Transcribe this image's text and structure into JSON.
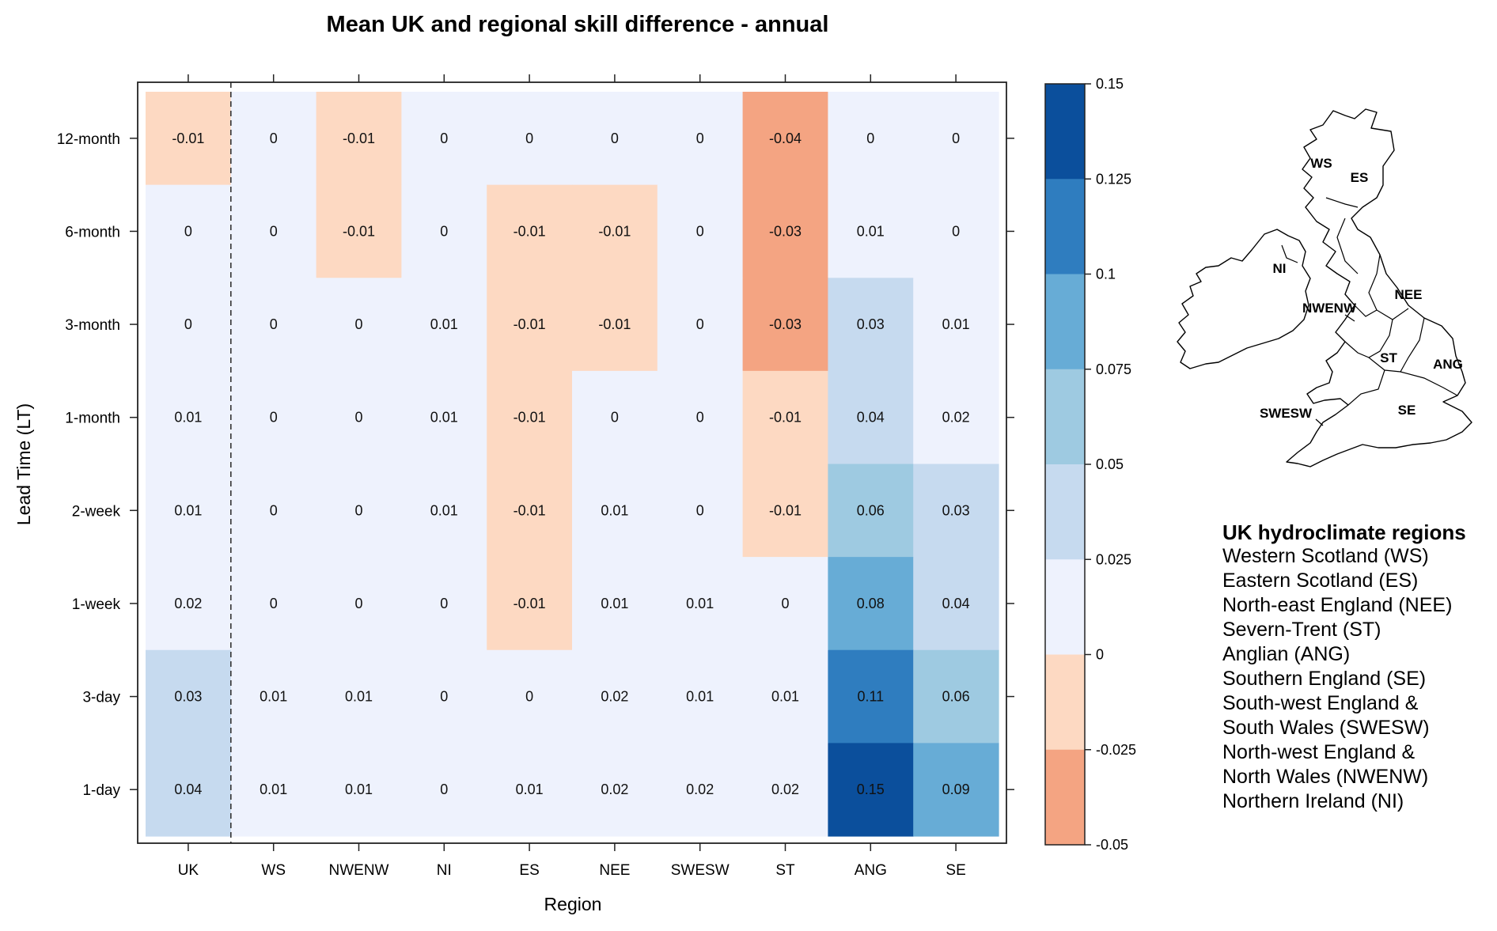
{
  "chart_data": {
    "type": "heatmap",
    "title": "Mean UK and regional skill difference - annual",
    "xlabel": "Region",
    "ylabel": "Lead Time (LT)",
    "x_categories": [
      "UK",
      "WS",
      "NWENW",
      "NI",
      "ES",
      "NEE",
      "SWESW",
      "ST",
      "ANG",
      "SE"
    ],
    "y_categories": [
      "12-month",
      "6-month",
      "3-month",
      "1-month",
      "2-week",
      "1-week",
      "3-day",
      "1-day"
    ],
    "values": [
      [
        -0.01,
        0,
        -0.01,
        0,
        0,
        0,
        0,
        -0.04,
        0,
        0
      ],
      [
        0,
        0,
        -0.01,
        0,
        -0.01,
        -0.01,
        0,
        -0.03,
        0.01,
        0
      ],
      [
        0,
        0,
        0,
        0.01,
        -0.01,
        -0.01,
        0,
        -0.03,
        0.03,
        0.01
      ],
      [
        0.01,
        0,
        0,
        0.01,
        -0.01,
        0,
        0,
        -0.01,
        0.04,
        0.02
      ],
      [
        0.01,
        0,
        0,
        0.01,
        -0.01,
        0.01,
        0,
        -0.01,
        0.06,
        0.03
      ],
      [
        0.02,
        0,
        0,
        0,
        -0.01,
        0.01,
        0.01,
        0,
        0.08,
        0.04
      ],
      [
        0.03,
        0.01,
        0.01,
        0,
        0,
        0.02,
        0.01,
        0.01,
        0.11,
        0.06
      ],
      [
        0.04,
        0.01,
        0.01,
        0,
        0.01,
        0.02,
        0.02,
        0.02,
        0.15,
        0.09
      ]
    ],
    "colorbar": {
      "ticks": [
        "0.15",
        "0.125",
        "0.1",
        "0.075",
        "0.05",
        "0.025",
        "0",
        "-0.025",
        "-0.05"
      ],
      "colors_top_to_bottom": [
        "#0b4f9c",
        "#2f7dbf",
        "#67acd6",
        "#9ecae1",
        "#c6daef",
        "#eef2fd",
        "#fdd9c2",
        "#f4a482"
      ]
    },
    "divider_after": "UK",
    "grid": false
  },
  "map": {
    "labels": [
      "WS",
      "ES",
      "NI",
      "NEE",
      "NWENW",
      "ST",
      "ANG",
      "SWESW",
      "SE"
    ]
  },
  "legend": {
    "title": "UK hydroclimate regions",
    "items": [
      "Western Scotland (WS)",
      "Eastern Scotland (ES)",
      "North-east England (NEE)",
      "Severn-Trent (ST)",
      "Anglian (ANG)",
      "Southern England (SE)",
      "South-west England &\nSouth Wales (SWESW)",
      "North-west England &\nNorth Wales (NWENW)",
      "Northern Ireland (NI)"
    ]
  }
}
